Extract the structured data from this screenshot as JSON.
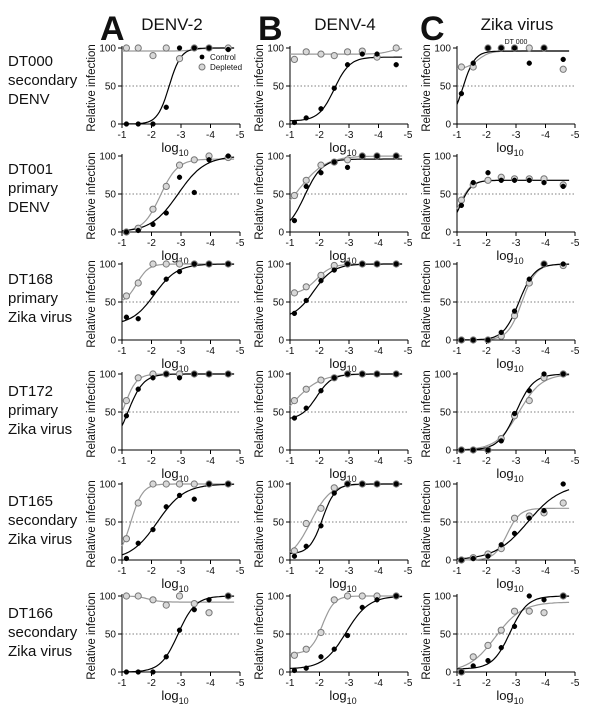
{
  "figure": {
    "columns": [
      {
        "letter": "A",
        "title": "DENV-2"
      },
      {
        "letter": "B",
        "title": "DENV-4"
      },
      {
        "letter": "C",
        "title": "Zika virus"
      }
    ],
    "rows": [
      {
        "line1": "DT000",
        "line2": "secondary",
        "line3": "DENV"
      },
      {
        "line1": "DT001",
        "line2": "primary",
        "line3": "DENV"
      },
      {
        "line1": "DT168",
        "line2": "primary",
        "line3": "Zika virus"
      },
      {
        "line1": "DT172",
        "line2": "primary",
        "line3": "Zika virus"
      },
      {
        "line1": "DT165",
        "line2": "secondary",
        "line3": "Zika virus"
      },
      {
        "line1": "DT166",
        "line2": "secondary",
        "line3": "Zika virus"
      }
    ],
    "panel_note": "DT 000",
    "legend": [
      "Control",
      "Depleted"
    ]
  },
  "chart_data": {
    "type": "scatter",
    "ylabel": "Relative infection",
    "xlabel": "log10",
    "x_ticks": [
      "-1",
      "-2",
      "-3",
      "-4",
      "-5"
    ],
    "y_ticks": [
      "0",
      "50",
      "100"
    ],
    "xlim": [
      -1,
      -5
    ],
    "ylim": [
      0,
      100
    ],
    "reference_line_y": 50,
    "x": [
      -1.15,
      -1.55,
      -2.05,
      -2.5,
      -2.95,
      -3.45,
      -3.95,
      -4.6
    ],
    "colors": {
      "control": "#000000",
      "depleted": "#9a9a9a"
    },
    "panels": [
      {
        "row": 0,
        "col": 0,
        "control": [
          0,
          0,
          0,
          22,
          100,
          100,
          100,
          98
        ],
        "depleted": [
          100,
          100,
          90,
          100,
          86,
          100,
          100,
          100
        ]
      },
      {
        "row": 0,
        "col": 1,
        "control": [
          2,
          8,
          20,
          47,
          78,
          92,
          92,
          78
        ],
        "depleted": [
          85,
          95,
          92,
          90,
          95,
          96,
          88,
          100
        ]
      },
      {
        "row": 0,
        "col": 2,
        "control": [
          40,
          80,
          100,
          100,
          100,
          80,
          100,
          85
        ],
        "depleted": [
          75,
          75,
          100,
          100,
          100,
          100,
          100,
          72
        ]
      },
      {
        "row": 1,
        "col": 0,
        "control": [
          0,
          2,
          10,
          25,
          72,
          52,
          95,
          100
        ],
        "depleted": [
          0,
          5,
          30,
          60,
          88,
          95,
          100,
          98
        ]
      },
      {
        "row": 1,
        "col": 1,
        "control": [
          15,
          60,
          78,
          92,
          85,
          100,
          100,
          100
        ],
        "depleted": [
          48,
          68,
          88,
          92,
          95,
          100,
          100,
          100
        ]
      },
      {
        "row": 1,
        "col": 2,
        "control": [
          35,
          65,
          78,
          68,
          68,
          68,
          65,
          60
        ],
        "depleted": [
          42,
          62,
          68,
          72,
          70,
          70,
          70,
          62
        ]
      },
      {
        "row": 2,
        "col": 0,
        "control": [
          30,
          28,
          62,
          80,
          90,
          100,
          100,
          100
        ],
        "depleted": [
          58,
          75,
          100,
          100,
          100,
          100,
          100,
          100
        ]
      },
      {
        "row": 2,
        "col": 1,
        "control": [
          35,
          52,
          78,
          92,
          100,
          100,
          100,
          100
        ],
        "depleted": [
          62,
          70,
          85,
          98,
          100,
          100,
          100,
          100
        ]
      },
      {
        "row": 2,
        "col": 2,
        "control": [
          0,
          0,
          0,
          10,
          38,
          80,
          100,
          100
        ],
        "depleted": [
          0,
          0,
          0,
          5,
          32,
          75,
          100,
          98
        ]
      },
      {
        "row": 3,
        "col": 0,
        "control": [
          45,
          80,
          95,
          100,
          95,
          100,
          100,
          100
        ],
        "depleted": [
          65,
          95,
          100,
          100,
          100,
          100,
          100,
          100
        ]
      },
      {
        "row": 3,
        "col": 1,
        "control": [
          42,
          55,
          78,
          95,
          100,
          100,
          100,
          100
        ],
        "depleted": [
          65,
          80,
          92,
          95,
          100,
          100,
          100,
          100
        ]
      },
      {
        "row": 3,
        "col": 2,
        "control": [
          0,
          0,
          0,
          12,
          48,
          78,
          100,
          100
        ],
        "depleted": [
          0,
          0,
          0,
          15,
          45,
          65,
          95,
          100
        ]
      },
      {
        "row": 4,
        "col": 0,
        "control": [
          2,
          22,
          40,
          70,
          85,
          80,
          100,
          100
        ],
        "depleted": [
          28,
          75,
          100,
          100,
          100,
          100,
          100,
          100
        ]
      },
      {
        "row": 4,
        "col": 1,
        "control": [
          5,
          18,
          45,
          88,
          100,
          100,
          100,
          100
        ],
        "depleted": [
          12,
          48,
          68,
          95,
          100,
          100,
          100,
          100
        ]
      },
      {
        "row": 4,
        "col": 2,
        "control": [
          0,
          2,
          5,
          20,
          35,
          55,
          65,
          100
        ],
        "depleted": [
          0,
          3,
          8,
          15,
          55,
          58,
          62,
          75
        ]
      },
      {
        "row": 5,
        "col": 0,
        "control": [
          0,
          0,
          0,
          20,
          55,
          82,
          95,
          100
        ],
        "depleted": [
          100,
          100,
          95,
          88,
          100,
          90,
          78,
          100
        ]
      },
      {
        "row": 5,
        "col": 1,
        "control": [
          2,
          5,
          20,
          30,
          48,
          85,
          95,
          100
        ],
        "depleted": [
          22,
          30,
          52,
          95,
          100,
          100,
          100,
          100
        ]
      },
      {
        "row": 5,
        "col": 2,
        "control": [
          0,
          8,
          15,
          32,
          60,
          100,
          95,
          100
        ],
        "depleted": [
          0,
          20,
          35,
          55,
          80,
          80,
          78,
          100
        ]
      }
    ]
  }
}
